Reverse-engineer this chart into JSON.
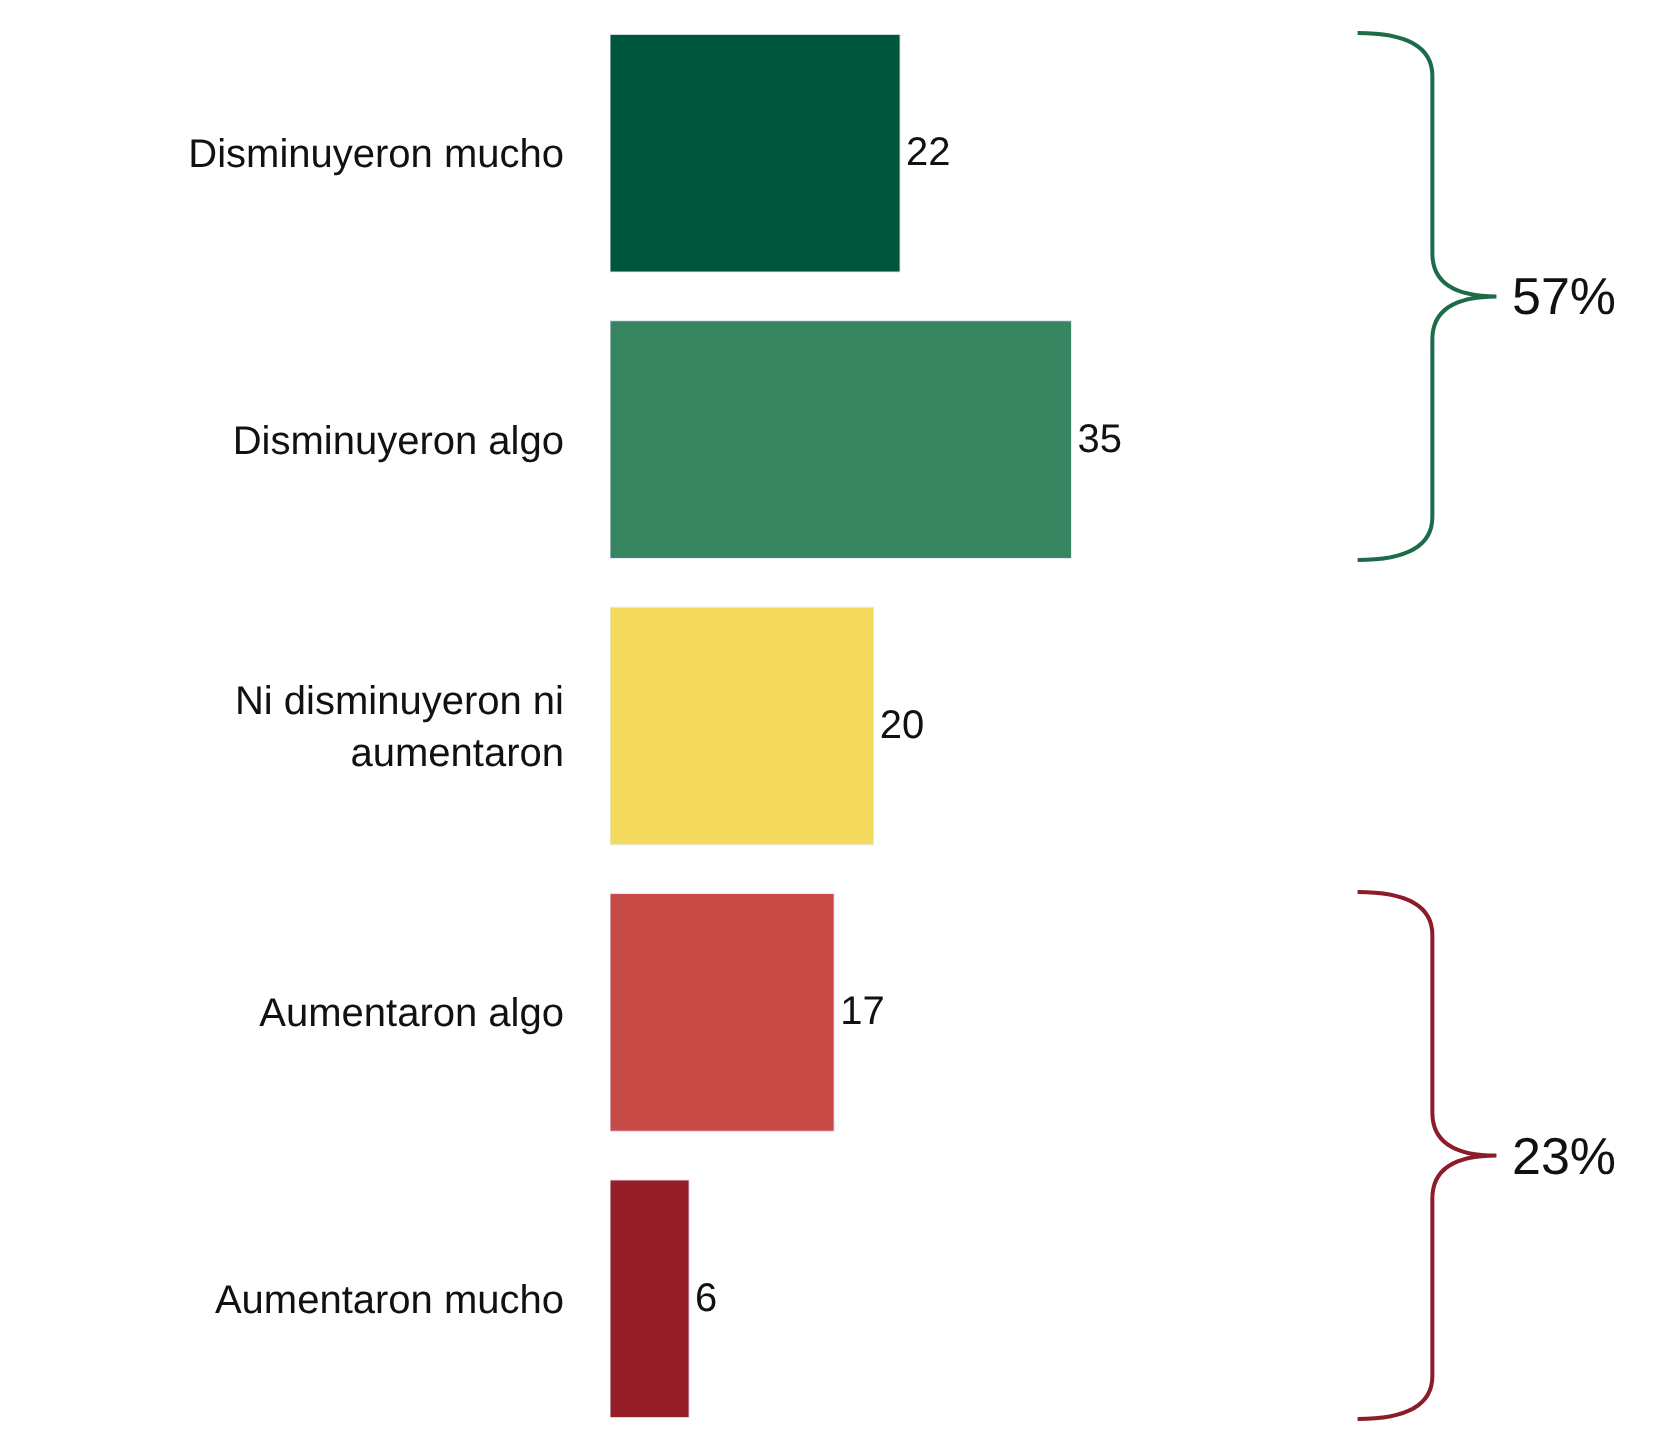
{
  "chart_data": {
    "type": "bar",
    "orientation": "horizontal",
    "categories": [
      "Disminuyeron mucho",
      "Disminuyeron algo",
      "Ni disminuyeron ni aumentaron",
      "Aumentaron algo",
      "Aumentaron mucho"
    ],
    "values": [
      22,
      35,
      20,
      17,
      6
    ],
    "colors": [
      "#00563b",
      "#378461",
      "#f3da5a",
      "#c74a46",
      "#961e29"
    ],
    "data_labels": true,
    "annotations": [
      "57%",
      "23%"
    ]
  }
}
